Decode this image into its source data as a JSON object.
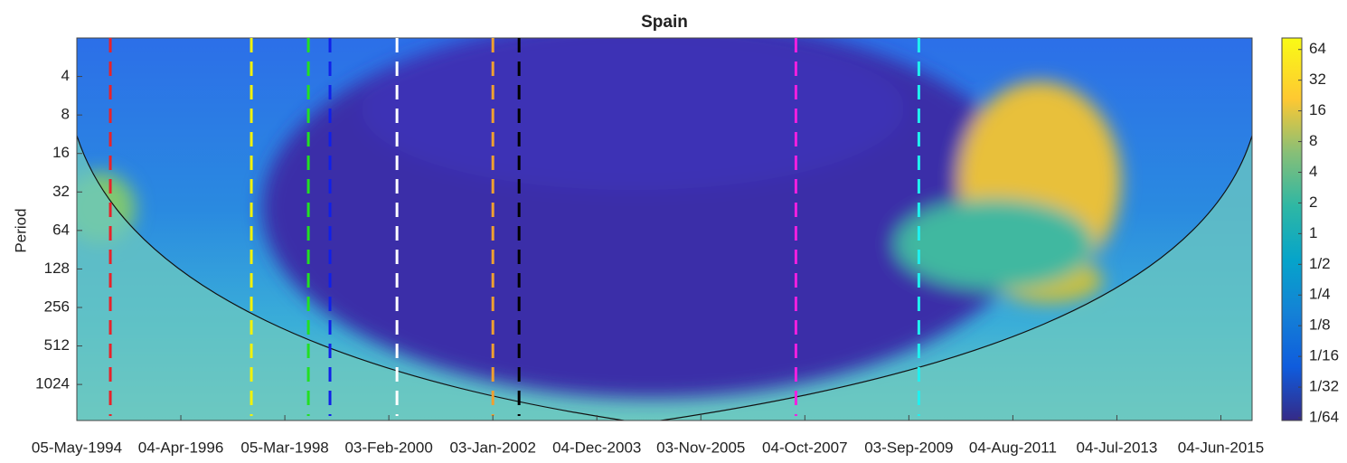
{
  "chart_data": {
    "type": "heatmap",
    "title": "Spain",
    "y_label": "Period",
    "xlim": [
      0,
      5650
    ],
    "xticks": [
      {
        "value": 0,
        "label": "05-May-1994"
      },
      {
        "value": 500,
        "label": "04-Apr-1996"
      },
      {
        "value": 1000,
        "label": "05-Mar-1998"
      },
      {
        "value": 1500,
        "label": "03-Feb-2000"
      },
      {
        "value": 2000,
        "label": "03-Jan-2002"
      },
      {
        "value": 2500,
        "label": "04-Dec-2003"
      },
      {
        "value": 3000,
        "label": "03-Nov-2005"
      },
      {
        "value": 3500,
        "label": "04-Oct-2007"
      },
      {
        "value": 4000,
        "label": "03-Sep-2009"
      },
      {
        "value": 4500,
        "label": "04-Aug-2011"
      },
      {
        "value": 5000,
        "label": "04-Jul-2013"
      },
      {
        "value": 5500,
        "label": "04-Jun-2015"
      }
    ],
    "ylim": [
      2,
      1960
    ],
    "y_log_base": 2,
    "yticks": [
      4,
      8,
      16,
      32,
      64,
      128,
      256,
      512,
      1024
    ],
    "events": [
      {
        "x": 161,
        "color": "#e8222a"
      },
      {
        "x": 839,
        "color": "#f2f20a"
      },
      {
        "x": 1113,
        "color": "#22e022"
      },
      {
        "x": 1217,
        "color": "#1020e8"
      },
      {
        "x": 1539,
        "color": "#ffffff"
      },
      {
        "x": 2000,
        "color": "#f0a030"
      },
      {
        "x": 2126,
        "color": "#000000"
      },
      {
        "x": 3457,
        "color": "#f020e0"
      },
      {
        "x": 4048,
        "color": "#20f0f0"
      }
    ],
    "colorbar": {
      "lim": [
        0.0147,
        83
      ],
      "log_base": 2,
      "ticks": [
        64,
        32,
        16,
        8,
        4,
        2,
        1,
        {
          "value": 0.5,
          "label": "1/2"
        },
        {
          "value": 0.25,
          "label": "1/4"
        },
        {
          "value": 0.125,
          "label": "1/8"
        },
        {
          "value": 0.0625,
          "label": "1/16"
        },
        {
          "value": 0.03125,
          "label": "1/32"
        },
        {
          "value": 0.015625,
          "label": "1/64"
        }
      ]
    }
  }
}
